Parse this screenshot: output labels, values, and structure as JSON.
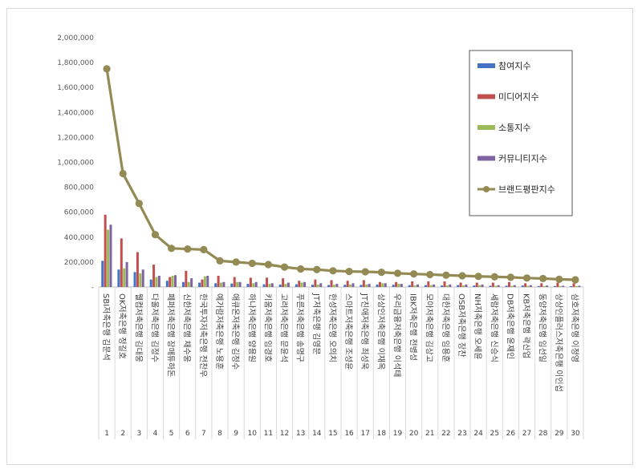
{
  "chart_data": {
    "type": "bar",
    "ylim": [
      0,
      2000000
    ],
    "y_ticks": [
      "-",
      "200,000",
      "400,000",
      "600,000",
      "800,000",
      "1,000,000",
      "1,200,000",
      "1,400,000",
      "1,600,000",
      "1,800,000",
      "2,000,000"
    ],
    "legend_position": "top-right",
    "grid": false,
    "categories": [
      "SBI저축은행 김문석",
      "OK저축은행 정길호",
      "웰컴저축은행 김대웅",
      "다올저축은행 김정수",
      "페퍼저축은행 장매튜하돈",
      "신한저축은행 채수웅",
      "한국투자저축은행 전찬우",
      "예가람저축은행 노용훈",
      "애큐온저축은행 김정수",
      "하나저축은행 양용원",
      "키움저축은행 임경호",
      "고려저축은행 문윤석",
      "푸른저축은행 송명구",
      "JT저축은행 김영문",
      "한성저축은행 오의치",
      "스마트저축은행 조성윤",
      "JT친애저축은행 최성욱",
      "상상인저축은행 이재옥",
      "우리금융저축은행 이석태",
      "IBK저축은행 전병성",
      "모아저축은행 김상고",
      "대한저축은행 임용훈",
      "OSB저축은행 장찬",
      "NH저축은행 오세윤",
      "세람저축은행 신승식",
      "DB저축은행 윤재인",
      "KB저축은행 곽산업",
      "동양저축은행 임선일",
      "상상인플러스저축은행 이인섭",
      "삼호저축은행 이정영"
    ],
    "index_labels": [
      "1",
      "2",
      "3",
      "4",
      "5",
      "6",
      "7",
      "8",
      "9",
      "10",
      "11",
      "12",
      "13",
      "14",
      "15",
      "16",
      "17",
      "18",
      "19",
      "20",
      "21",
      "22",
      "23",
      "24",
      "25",
      "26",
      "27",
      "28",
      "29",
      "30"
    ],
    "series": [
      {
        "name": "참여지수",
        "kind": "bar",
        "color": "#4472C4",
        "values": [
          210000,
          140000,
          120000,
          60000,
          50000,
          40000,
          35000,
          30000,
          28000,
          25000,
          22000,
          20000,
          22000,
          18000,
          16000,
          18000,
          17000,
          20000,
          18000,
          15000,
          15000,
          12000,
          15000,
          12000,
          10000,
          10000,
          12000,
          8000,
          8000,
          7000
        ]
      },
      {
        "name": "미디어지수",
        "kind": "bar",
        "color": "#C0504D",
        "values": [
          580000,
          390000,
          280000,
          180000,
          80000,
          130000,
          60000,
          90000,
          80000,
          75000,
          75000,
          70000,
          50000,
          60000,
          55000,
          50000,
          55000,
          40000,
          40000,
          45000,
          45000,
          45000,
          35000,
          35000,
          35000,
          40000,
          30000,
          30000,
          35000,
          30000
        ]
      },
      {
        "name": "소통지수",
        "kind": "bar",
        "color": "#9BBB59",
        "values": [
          460000,
          150000,
          110000,
          80000,
          90000,
          40000,
          85000,
          35000,
          40000,
          30000,
          25000,
          25000,
          35000,
          20000,
          18000,
          20000,
          20000,
          30000,
          25000,
          12000,
          15000,
          12000,
          12000,
          15000,
          10000,
          10000,
          10000,
          8000,
          8000,
          7000
        ]
      },
      {
        "name": "커뮤니티지수",
        "kind": "bar",
        "color": "#8064A2",
        "values": [
          500000,
          200000,
          140000,
          90000,
          95000,
          70000,
          90000,
          40000,
          40000,
          40000,
          30000,
          35000,
          40000,
          30000,
          25000,
          30000,
          25000,
          30000,
          25000,
          20000,
          20000,
          20000,
          20000,
          20000,
          15000,
          15000,
          15000,
          12000,
          10000,
          10000
        ]
      },
      {
        "name": "브랜드평판지수",
        "kind": "line",
        "color": "#948A54",
        "values": [
          1750000,
          910000,
          670000,
          420000,
          310000,
          305000,
          300000,
          210000,
          200000,
          190000,
          180000,
          160000,
          145000,
          140000,
          130000,
          125000,
          122000,
          118000,
          110000,
          105000,
          100000,
          95000,
          90000,
          85000,
          82000,
          78000,
          72000,
          68000,
          62000,
          58000
        ]
      }
    ]
  }
}
